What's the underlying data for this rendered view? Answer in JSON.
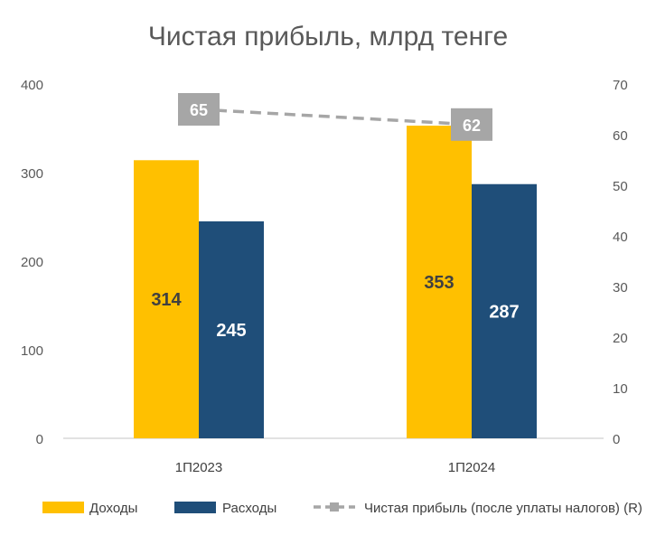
{
  "chart_data": {
    "type": "bar",
    "title": "Чистая прибыль, млрд тенге",
    "categories": [
      "1П2023",
      "1П2024"
    ],
    "series": [
      {
        "name": "Доходы",
        "kind": "bar",
        "axis": "left",
        "color": "#FFC000",
        "label_color": "#404040",
        "values": [
          314,
          353
        ],
        "labels": [
          "314",
          "353"
        ]
      },
      {
        "name": "Расходы",
        "kind": "bar",
        "axis": "left",
        "color": "#1F4E79",
        "label_color": "#ffffff",
        "values": [
          245,
          287
        ],
        "labels": [
          "245",
          "287"
        ]
      },
      {
        "name": "Чистая прибыль (после уплаты налогов) (R)",
        "kind": "line",
        "axis": "right",
        "color": "#A6A6A6",
        "line_style": "dashed",
        "values": [
          65,
          62
        ],
        "labels": [
          "65",
          "62"
        ]
      }
    ],
    "y_left": {
      "min": 0,
      "max": 400,
      "ticks": [
        "0",
        "100",
        "200",
        "300",
        "400"
      ]
    },
    "y_right": {
      "min": 0,
      "max": 70,
      "ticks": [
        "0",
        "10",
        "20",
        "30",
        "40",
        "50",
        "60",
        "70"
      ]
    },
    "grid": false,
    "legend_position": "bottom"
  }
}
